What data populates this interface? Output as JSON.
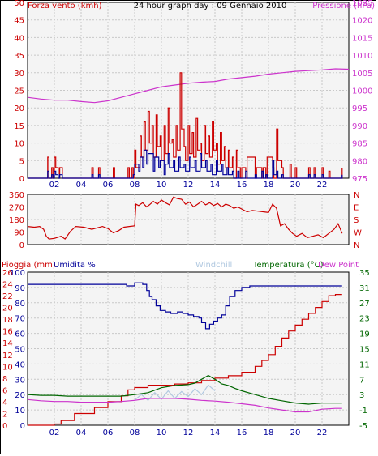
{
  "title": "24 hour graph day : 09 Gennaio 2010",
  "colors": {
    "wind": "#cc0000",
    "gust": "#cc0000",
    "pressure": "#cc33cc",
    "direction": "#cc0000",
    "rain": "#cc0000",
    "humidity": "#000099",
    "temperature": "#006600",
    "dewpoint": "#cc33cc",
    "windchill": "#b0c8e0",
    "panel_bg": "#f4f4f4",
    "grid": "#c8c8c8",
    "xtick": "#000099"
  },
  "chart_data": [
    {
      "type": "line",
      "panel": "wind",
      "x_ticks": [
        "02",
        "04",
        "06",
        "08",
        "10",
        "12",
        "14",
        "16",
        "18",
        "20",
        "22"
      ],
      "xlim": [
        0,
        24
      ],
      "left_axis": {
        "label": "Forza vento (kmh)",
        "ticks": [
          "0",
          "5",
          "10",
          "15",
          "20",
          "25",
          "30",
          "35",
          "40",
          "45",
          "50"
        ],
        "ylim": [
          0,
          50
        ]
      },
      "right_axis": {
        "label": "Pressione (hPa)",
        "ticks": [
          "975",
          "980",
          "985",
          "990",
          "995",
          "1000",
          "1005",
          "1010",
          "1015",
          "1020",
          "1025"
        ],
        "ylim": [
          975,
          1025
        ]
      },
      "series": [
        {
          "name": "Forza vento (kmh)",
          "axis": "left",
          "style": "step",
          "x": [
            0,
            1.5,
            1.6,
            1.8,
            1.9,
            2.0,
            2.1,
            2.3,
            2.4,
            2.6,
            2.7,
            4.8,
            4.9,
            5.3,
            5.4,
            6.4,
            6.5,
            7.5,
            7.6,
            7.8,
            7.9,
            8.0,
            8.1,
            8.4,
            8.5,
            8.7,
            8.8,
            9.0,
            9.1,
            9.3,
            9.4,
            9.6,
            9.7,
            9.9,
            10.0,
            10.2,
            10.3,
            10.5,
            10.6,
            10.8,
            10.9,
            11.1,
            11.2,
            11.4,
            11.5,
            11.7,
            11.8,
            12.0,
            12.1,
            12.3,
            12.4,
            12.6,
            12.7,
            12.9,
            13.0,
            13.2,
            13.3,
            13.5,
            13.6,
            13.8,
            13.9,
            14.1,
            14.2,
            14.4,
            14.5,
            14.7,
            14.8,
            15.0,
            15.1,
            15.3,
            15.4,
            15.6,
            15.7,
            15.9,
            16.0,
            16.3,
            16.4,
            17.0,
            17.1,
            17.5,
            17.6,
            17.8,
            17.9,
            18.3,
            18.4,
            18.6,
            18.7,
            19.0,
            19.1,
            19.6,
            19.7,
            20.0,
            20.1,
            21.0,
            21.1,
            21.4,
            21.5,
            22.0,
            22.1,
            22.5,
            22.6,
            23.5
          ],
          "values": [
            0,
            6,
            0,
            3,
            0,
            6,
            3,
            0,
            3,
            0,
            0,
            3,
            0,
            3,
            0,
            3,
            0,
            3,
            0,
            3,
            0,
            8,
            3,
            12,
            6,
            16,
            8,
            19,
            10,
            15,
            6,
            18,
            9,
            12,
            5,
            15,
            7,
            20,
            10,
            11,
            6,
            15,
            8,
            30,
            14,
            9,
            5,
            15,
            7,
            13,
            6,
            17,
            8,
            10,
            5,
            15,
            7,
            12,
            6,
            16,
            8,
            10,
            4,
            13,
            5,
            9,
            3,
            8,
            3,
            6,
            0,
            8,
            3,
            0,
            3,
            0,
            6,
            0,
            3,
            0,
            3,
            0,
            6,
            3,
            0,
            14,
            5,
            3,
            0,
            4,
            0,
            3,
            0,
            3,
            0,
            3,
            0,
            3,
            0,
            2,
            0,
            3
          ]
        },
        {
          "name": "Raffica (kmh)",
          "axis": "left",
          "style": "step",
          "x": [
            0,
            1.5,
            1.6,
            1.8,
            1.9,
            2.0,
            2.1,
            2.3,
            2.4,
            2.6,
            2.7,
            4.8,
            4.9,
            5.3,
            5.4,
            7.9,
            8.0,
            8.3,
            8.4,
            8.6,
            8.7,
            8.9,
            9.0,
            9.4,
            9.5,
            9.8,
            9.9,
            10.2,
            10.3,
            10.5,
            10.6,
            10.9,
            11.0,
            11.3,
            11.4,
            11.7,
            11.8,
            12.1,
            12.2,
            12.5,
            12.6,
            12.9,
            13.0,
            13.3,
            13.4,
            13.7,
            13.8,
            14.1,
            14.2,
            14.5,
            14.6,
            14.9,
            15.0,
            15.3,
            15.4,
            15.7,
            15.8,
            16.3,
            16.4,
            17.0,
            17.1,
            17.5,
            17.6,
            17.8,
            17.9,
            18.3,
            18.4,
            18.6,
            18.7,
            19.0,
            19.1,
            21.0,
            21.1,
            21.4,
            21.5,
            22.0,
            22.1,
            23.5
          ],
          "values": [
            0,
            2,
            0,
            1,
            0,
            2,
            1,
            0,
            1,
            0,
            0,
            1,
            0,
            1,
            0,
            1,
            4,
            2,
            6,
            3,
            8,
            4,
            7,
            2,
            6,
            3,
            5,
            1,
            4,
            7,
            3,
            5,
            2,
            6,
            3,
            4,
            2,
            6,
            3,
            5,
            2,
            7,
            3,
            5,
            2,
            4,
            1,
            5,
            2,
            4,
            1,
            3,
            1,
            2,
            0,
            2,
            0,
            2,
            0,
            1,
            0,
            2,
            0,
            1,
            0,
            5,
            1,
            2,
            0,
            1,
            0,
            1,
            0,
            1,
            0,
            1,
            0,
            1
          ]
        },
        {
          "name": "Pressione (hPa)",
          "axis": "right",
          "style": "line",
          "x": [
            0,
            1,
            2,
            3,
            4,
            5,
            6,
            7,
            8,
            9,
            10,
            11,
            12,
            13,
            14,
            15,
            16,
            17,
            18,
            19,
            20,
            21,
            22,
            23,
            24
          ],
          "values": [
            998.0,
            997.5,
            997.2,
            997.2,
            996.8,
            996.5,
            997.0,
            998.0,
            999.0,
            1000.0,
            1001.0,
            1001.5,
            1002.0,
            1002.3,
            1002.5,
            1003.2,
            1003.6,
            1004.0,
            1004.6,
            1005.0,
            1005.4,
            1005.6,
            1005.8,
            1006.1,
            1006.0
          ]
        }
      ]
    },
    {
      "type": "line",
      "panel": "direction",
      "x_ticks": [
        "02",
        "04",
        "06",
        "08",
        "10",
        "12",
        "14",
        "16",
        "18",
        "20",
        "22"
      ],
      "xlim": [
        0,
        24
      ],
      "left_axis": {
        "ticks": [
          "0",
          "90",
          "180",
          "270",
          "360"
        ],
        "ylim": [
          0,
          360
        ]
      },
      "right_axis": {
        "ticks": [
          "N",
          "W",
          "S",
          "E",
          "N"
        ]
      },
      "series": [
        {
          "name": "Direzione vento",
          "axis": "left",
          "style": "line",
          "x": [
            0,
            0.5,
            0.9,
            1.2,
            1.4,
            1.6,
            2.0,
            2.5,
            2.8,
            3.2,
            3.6,
            4.2,
            4.8,
            5.2,
            5.6,
            6.0,
            6.4,
            6.8,
            7.2,
            7.6,
            8.0,
            8.1,
            8.3,
            8.6,
            8.9,
            9.1,
            9.4,
            9.7,
            10.0,
            10.3,
            10.6,
            10.9,
            11.2,
            11.5,
            11.8,
            12.1,
            12.4,
            12.7,
            13.0,
            13.3,
            13.6,
            13.9,
            14.2,
            14.5,
            14.8,
            15.1,
            15.4,
            15.7,
            16.0,
            16.4,
            16.8,
            17.2,
            17.6,
            18.0,
            18.3,
            18.6,
            18.9,
            19.2,
            19.5,
            19.8,
            20.1,
            20.5,
            20.9,
            21.3,
            21.7,
            22.1,
            22.5,
            22.9,
            23.2,
            23.5
          ],
          "values": [
            130,
            125,
            130,
            110,
            60,
            40,
            45,
            60,
            40,
            95,
            130,
            125,
            110,
            120,
            130,
            115,
            85,
            100,
            125,
            130,
            135,
            290,
            280,
            300,
            270,
            285,
            310,
            290,
            320,
            300,
            285,
            340,
            330,
            325,
            290,
            305,
            270,
            290,
            310,
            285,
            300,
            280,
            295,
            270,
            290,
            280,
            260,
            270,
            255,
            235,
            245,
            240,
            235,
            230,
            290,
            260,
            135,
            150,
            110,
            80,
            60,
            80,
            50,
            60,
            70,
            50,
            80,
            110,
            150,
            80
          ]
        }
      ]
    },
    {
      "type": "line",
      "panel": "temp_hum_rain",
      "x_ticks": [
        "02",
        "04",
        "06",
        "08",
        "10",
        "12",
        "14",
        "16",
        "18",
        "20",
        "22"
      ],
      "xlim": [
        0,
        24
      ],
      "left_axis_rain": {
        "label": "Pioggia (mm)",
        "ticks": [
          "0",
          "2",
          "4",
          "6",
          "8",
          "10",
          "12",
          "14",
          "16",
          "18",
          "20",
          "22",
          "24",
          "26"
        ]
      },
      "left_axis_humidity": {
        "label": "Umidita %",
        "ticks": [
          "0",
          "10",
          "20",
          "30",
          "40",
          "50",
          "60",
          "70",
          "80",
          "90",
          "100"
        ],
        "ylim": [
          0,
          100
        ]
      },
      "right_axis": {
        "ticks": [
          "-5",
          "-1",
          "3",
          "7",
          "11",
          "15",
          "19",
          "23",
          "27",
          "31",
          "35"
        ],
        "ylim": [
          -5,
          35
        ]
      },
      "labels": [
        "Windchill",
        "Temperatura (°C)",
        "Dew Point"
      ],
      "series": [
        {
          "name": "Umidita %",
          "axis": "humidity",
          "style": "step",
          "x": [
            0,
            7.0,
            7.4,
            8.0,
            8.6,
            8.9,
            9.1,
            9.3,
            9.6,
            9.9,
            10.3,
            10.7,
            11.2,
            11.6,
            12.0,
            12.4,
            12.8,
            13.0,
            13.3,
            13.6,
            13.9,
            14.2,
            14.5,
            14.8,
            15.1,
            15.5,
            16.0,
            16.6,
            17.5,
            18.5,
            19.5,
            20.5,
            21.5,
            22.5,
            23.5
          ],
          "values": [
            92,
            92,
            91,
            93,
            92,
            88,
            84,
            82,
            78,
            75,
            74,
            73,
            74,
            73,
            72,
            71,
            70,
            67,
            63,
            66,
            68,
            70,
            72,
            78,
            84,
            88,
            90,
            91,
            91,
            91,
            91,
            91,
            91,
            91,
            91
          ]
        },
        {
          "name": "Pioggia (mm)",
          "axis": "rain",
          "style": "step",
          "x": [
            0,
            1.5,
            2.0,
            2.5,
            3.5,
            5.0,
            6.0,
            7.0,
            7.5,
            8.0,
            9.0,
            11.0,
            12.0,
            13.0,
            14.0,
            15.0,
            16.0,
            17.0,
            17.5,
            18.0,
            18.5,
            19.0,
            19.5,
            20.0,
            20.5,
            21.0,
            21.5,
            22.0,
            22.5,
            23.0,
            23.5
          ],
          "values": [
            0,
            0,
            0.2,
            0.8,
            2.0,
            3.0,
            4.0,
            5.0,
            6.0,
            6.4,
            6.8,
            7.0,
            7.2,
            7.6,
            8.0,
            8.4,
            9.0,
            10.0,
            11.0,
            12.0,
            13.4,
            14.8,
            16.0,
            17.0,
            18.0,
            19.0,
            20.0,
            21.0,
            22.0,
            22.2,
            22.2
          ]
        },
        {
          "name": "Temperatura (°C)",
          "axis": "right",
          "style": "line",
          "x": [
            0,
            1,
            2,
            3,
            4,
            5,
            6,
            7,
            8,
            9,
            10,
            11,
            12,
            12.5,
            13,
            13.5,
            14,
            14.5,
            15,
            15.5,
            16,
            17,
            18,
            19,
            20,
            21,
            22,
            23,
            23.5
          ],
          "values": [
            3.0,
            2.8,
            2.8,
            2.6,
            2.6,
            2.6,
            2.6,
            2.6,
            3.0,
            3.5,
            4.8,
            5.4,
            5.6,
            6.0,
            7.0,
            8.0,
            7.0,
            5.8,
            5.4,
            4.6,
            4.0,
            3.0,
            2.0,
            1.4,
            0.8,
            0.5,
            0.8,
            0.8,
            0.8
          ]
        },
        {
          "name": "Dew Point",
          "axis": "right",
          "style": "line",
          "x": [
            0,
            1,
            2,
            3,
            4,
            5,
            6,
            7,
            8,
            9,
            10,
            11,
            12,
            13,
            14,
            15,
            16,
            17,
            18,
            19,
            20,
            21,
            22,
            23,
            23.5
          ],
          "values": [
            1.7,
            1.4,
            1.2,
            1.2,
            1.0,
            1.0,
            1.0,
            1.2,
            1.5,
            2.0,
            2.0,
            2.0,
            1.8,
            1.5,
            1.3,
            1.0,
            0.6,
            0.2,
            -0.5,
            -1.0,
            -1.5,
            -1.5,
            -0.8,
            -0.6,
            -0.6
          ]
        },
        {
          "name": "Windchill",
          "axis": "right",
          "style": "line",
          "x": [
            8,
            8.5,
            9,
            9.5,
            10,
            10.5,
            11,
            11.5,
            12,
            12.5,
            13,
            13.5,
            14
          ],
          "values": [
            1.6,
            3.0,
            1.5,
            3.5,
            1.8,
            4.0,
            2.0,
            3.8,
            2.5,
            4.5,
            3.0,
            5.5,
            4.0
          ]
        }
      ]
    }
  ]
}
